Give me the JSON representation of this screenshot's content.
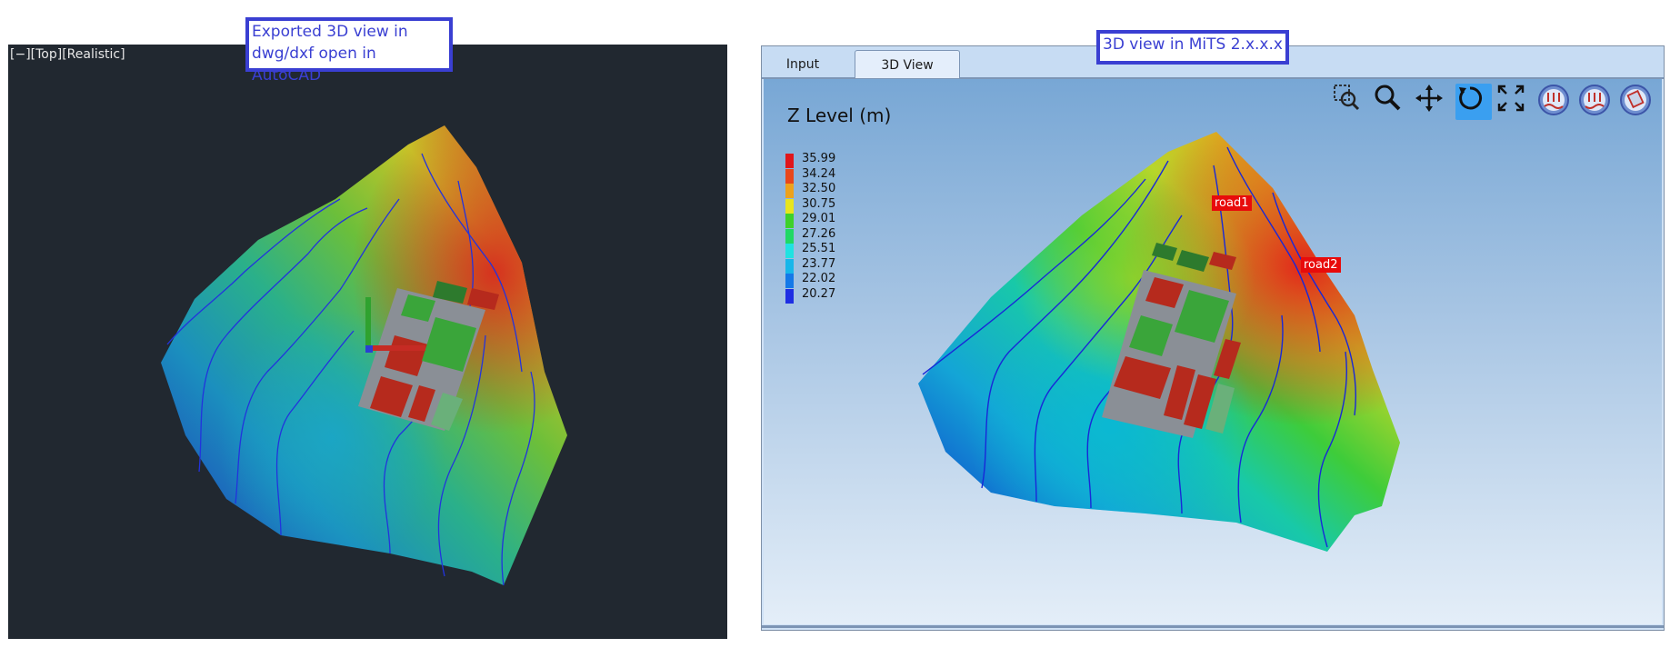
{
  "callouts": {
    "left_line1": "Exported 3D view in",
    "left_line2": "dwg/dxf open in AutoCAD",
    "right": "3D view in MiTS 2.x.x.x"
  },
  "autocad": {
    "viewport_label": "[−][Top][Realistic]"
  },
  "mits": {
    "tabs": [
      {
        "label": "Input",
        "active": false
      },
      {
        "label": "3D View",
        "active": true
      }
    ],
    "legend": {
      "title": "Z Level (m)",
      "entries": [
        {
          "value": "35.99",
          "color": "#e0161c"
        },
        {
          "value": "34.24",
          "color": "#e8471b"
        },
        {
          "value": "32.50",
          "color": "#eda21c"
        },
        {
          "value": "30.75",
          "color": "#e8e51e"
        },
        {
          "value": "29.01",
          "color": "#3ed12a"
        },
        {
          "value": "27.26",
          "color": "#20d864"
        },
        {
          "value": "25.51",
          "color": "#1fe2e1"
        },
        {
          "value": "23.77",
          "color": "#17b6ea"
        },
        {
          "value": "22.02",
          "color": "#1479e8"
        },
        {
          "value": "20.27",
          "color": "#1e2ee3"
        }
      ]
    },
    "road_labels": [
      "road1",
      "road2"
    ],
    "toolbar": [
      {
        "name": "zoom-window-icon"
      },
      {
        "name": "zoom-icon"
      },
      {
        "name": "pan-icon"
      },
      {
        "name": "rotate-icon",
        "active": true
      },
      {
        "name": "fit-view-icon"
      },
      {
        "name": "view-up-icon"
      },
      {
        "name": "view-down-icon"
      },
      {
        "name": "view-bottom-icon"
      }
    ]
  }
}
